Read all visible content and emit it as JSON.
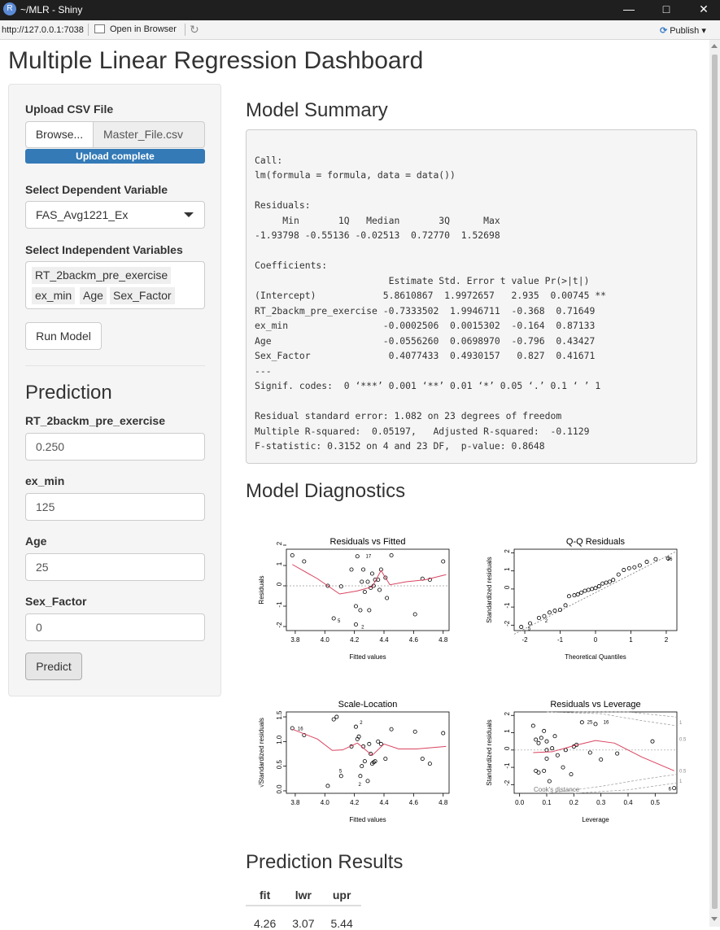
{
  "window": {
    "title": "~/MLR - Shiny",
    "icon_letter": "R"
  },
  "toolbar": {
    "url": "http://127.0.0.1:7038",
    "open_browser": "Open in Browser",
    "publish": "Publish"
  },
  "page": {
    "title": "Multiple Linear Regression Dashboard"
  },
  "sidebar": {
    "upload_label": "Upload CSV File",
    "browse": "Browse...",
    "file_name": "Master_File.csv",
    "upload_status": "Upload complete",
    "dep_label": "Select Dependent Variable",
    "dep_value": "FAS_Avg1221_Ex",
    "indep_label": "Select Independent Variables",
    "indep_values": [
      "RT_2backm_pre_exercise",
      "ex_min",
      "Age",
      "Sex_Factor"
    ],
    "run_button": "Run Model",
    "prediction_heading": "Prediction",
    "inputs": [
      {
        "label": "RT_2backm_pre_exercise",
        "value": "0.250"
      },
      {
        "label": "ex_min",
        "value": "125"
      },
      {
        "label": "Age",
        "value": "25"
      },
      {
        "label": "Sex_Factor",
        "value": "0"
      }
    ],
    "predict_button": "Predict"
  },
  "main": {
    "summary_heading": "Model Summary",
    "summary_text": "\nCall:\nlm(formula = formula, data = data())\n\nResiduals:\n     Min       1Q   Median       3Q      Max \n-1.93798 -0.55136 -0.02513  0.72770  1.52698 \n\nCoefficients:\n                        Estimate Std. Error t value Pr(>|t|)   \n(Intercept)            5.8610867  1.9972657   2.935  0.00745 **\nRT_2backm_pre_exercise -0.7333502  1.9946711  -0.368  0.71649   \nex_min                 -0.0002506  0.0015302  -0.164  0.87133   \nAge                    -0.0556260  0.0698970  -0.796  0.43427   \nSex_Factor              0.4077433  0.4930157   0.827  0.41671   \n---\nSignif. codes:  0 ‘***’ 0.001 ‘**’ 0.01 ‘*’ 0.05 ‘.’ 0.1 ‘ ’ 1\n\nResidual standard error: 1.082 on 23 degrees of freedom\nMultiple R-squared:  0.05197,\tAdjusted R-squared:  -0.1129 \nF-statistic: 0.3152 on 4 and 23 DF,  p-value: 0.8648",
    "diagnostics_heading": "Model Diagnostics",
    "plots": {
      "rvf": {
        "title": "Residuals vs Fitted",
        "xlabel": "Fitted values",
        "ylabel": "Residuals",
        "xticks": [
          "3.8",
          "4.0",
          "4.2",
          "4.4",
          "4.6",
          "4.8"
        ],
        "yticks": [
          "2",
          "1",
          "0",
          "-1",
          "-2"
        ],
        "xlim": [
          3.74,
          4.84
        ],
        "ylim": [
          -2.2,
          1.8
        ],
        "points": [
          [
            3.78,
            1.5
          ],
          [
            3.86,
            1.2
          ],
          [
            4.02,
            0.0
          ],
          [
            4.11,
            -0.03
          ],
          [
            4.06,
            -1.6
          ],
          [
            4.18,
            0.8
          ],
          [
            4.21,
            -1.0
          ],
          [
            4.22,
            1.45
          ],
          [
            4.24,
            -1.2
          ],
          [
            4.25,
            0.2
          ],
          [
            4.26,
            0.8
          ],
          [
            4.27,
            -0.3
          ],
          [
            4.29,
            0.2
          ],
          [
            4.3,
            -1.2
          ],
          [
            4.31,
            -0.1
          ],
          [
            4.32,
            0.6
          ],
          [
            4.33,
            -0.0
          ],
          [
            4.34,
            0.3
          ],
          [
            4.36,
            0.3
          ],
          [
            4.37,
            -0.2
          ],
          [
            4.38,
            0.8
          ],
          [
            4.41,
            0.4
          ],
          [
            4.42,
            -0.6
          ],
          [
            4.45,
            1.5
          ],
          [
            4.61,
            -1.4
          ],
          [
            4.66,
            0.35
          ],
          [
            4.71,
            0.3
          ],
          [
            4.8,
            1.2
          ],
          [
            4.21,
            -1.9
          ]
        ],
        "smooth": [
          [
            3.78,
            1.05
          ],
          [
            3.95,
            0.35
          ],
          [
            4.1,
            -0.4
          ],
          [
            4.22,
            -0.25
          ],
          [
            4.32,
            -0.05
          ],
          [
            4.38,
            0.75
          ],
          [
            4.44,
            0.05
          ],
          [
            4.55,
            0.2
          ],
          [
            4.68,
            0.3
          ],
          [
            4.82,
            0.55
          ]
        ],
        "labels": [
          [
            "17",
            4.26,
            1.5
          ],
          [
            "5",
            4.07,
            -1.68
          ],
          [
            "2",
            4.23,
            -1.98
          ]
        ]
      },
      "qq": {
        "title": "Q-Q Residuals",
        "xlabel": "Theoretical Quantiles",
        "ylabel": "Standardized residuals",
        "xticks": [
          "-2",
          "-1",
          "0",
          "1",
          "2"
        ],
        "yticks": [
          "2",
          "1",
          "0",
          "-1",
          "-2"
        ],
        "xlim": [
          -2.3,
          2.3
        ],
        "ylim": [
          -2.3,
          2.2
        ],
        "points": [
          [
            -2.1,
            -2.1
          ],
          [
            -1.85,
            -1.9
          ],
          [
            -1.6,
            -1.6
          ],
          [
            -1.45,
            -1.5
          ],
          [
            -1.3,
            -1.3
          ],
          [
            -1.15,
            -1.2
          ],
          [
            -1.0,
            -1.15
          ],
          [
            -0.85,
            -0.9
          ],
          [
            -0.75,
            -0.4
          ],
          [
            -0.6,
            -0.35
          ],
          [
            -0.5,
            -0.3
          ],
          [
            -0.4,
            -0.2
          ],
          [
            -0.3,
            -0.1
          ],
          [
            -0.2,
            -0.05
          ],
          [
            -0.1,
            0.0
          ],
          [
            0.0,
            0.05
          ],
          [
            0.1,
            0.15
          ],
          [
            0.2,
            0.3
          ],
          [
            0.3,
            0.35
          ],
          [
            0.4,
            0.4
          ],
          [
            0.5,
            0.5
          ],
          [
            0.65,
            0.8
          ],
          [
            0.8,
            1.05
          ],
          [
            0.95,
            1.15
          ],
          [
            1.1,
            1.2
          ],
          [
            1.25,
            1.3
          ],
          [
            1.45,
            1.5
          ],
          [
            1.7,
            1.65
          ],
          [
            2.05,
            1.7
          ]
        ],
        "line": [
          [
            -2.3,
            -2.5
          ],
          [
            2.3,
            2.1
          ]
        ],
        "labels": [
          [
            "16",
            1.95,
            1.7
          ],
          [
            "5",
            -1.98,
            -2.15
          ],
          [
            "2",
            -1.5,
            -1.72
          ]
        ]
      },
      "sl": {
        "title": "Scale-Location",
        "xlabel": "Fitted values",
        "ylabel": "√Standardized residuals",
        "xticks": [
          "3.8",
          "4.0",
          "4.2",
          "4.4",
          "4.6",
          "4.8"
        ],
        "yticks": [
          "1.5",
          "1.0",
          "0.5",
          "0.0"
        ],
        "xlim": [
          3.74,
          4.84
        ],
        "ylim": [
          -0.05,
          1.6
        ],
        "points": [
          [
            3.78,
            1.27
          ],
          [
            3.86,
            1.13
          ],
          [
            4.02,
            0.1
          ],
          [
            4.06,
            1.45
          ],
          [
            4.11,
            0.3
          ],
          [
            4.18,
            0.9
          ],
          [
            4.21,
            1.3
          ],
          [
            4.22,
            1.05
          ],
          [
            4.23,
            1.1
          ],
          [
            4.25,
            0.5
          ],
          [
            4.26,
            0.9
          ],
          [
            4.27,
            0.6
          ],
          [
            4.29,
            0.2
          ],
          [
            4.3,
            0.95
          ],
          [
            4.31,
            0.75
          ],
          [
            4.32,
            0.55
          ],
          [
            4.33,
            0.58
          ],
          [
            4.34,
            0.6
          ],
          [
            4.36,
            1.0
          ],
          [
            4.38,
            0.95
          ],
          [
            4.41,
            0.65
          ],
          [
            4.45,
            1.25
          ],
          [
            4.61,
            1.2
          ],
          [
            4.66,
            0.65
          ],
          [
            4.71,
            0.55
          ],
          [
            4.8,
            1.17
          ],
          [
            4.24,
            0.3
          ],
          [
            4.08,
            1.5
          ]
        ],
        "smooth": [
          [
            3.78,
            1.25
          ],
          [
            3.95,
            1.05
          ],
          [
            4.05,
            0.82
          ],
          [
            4.12,
            0.83
          ],
          [
            4.22,
            0.97
          ],
          [
            4.32,
            0.72
          ],
          [
            4.4,
            0.95
          ],
          [
            4.5,
            0.85
          ],
          [
            4.62,
            0.85
          ],
          [
            4.82,
            0.9
          ]
        ],
        "labels": [
          [
            "16",
            3.8,
            1.28
          ],
          [
            "5",
            4.08,
            0.42
          ],
          [
            "2",
            4.22,
            1.4
          ],
          [
            "2",
            4.21,
            0.15
          ]
        ]
      },
      "rvl": {
        "title": "Residuals vs Leverage",
        "xlabel": "Leverage",
        "ylabel": "Standardized residuals",
        "xticks": [
          "0.0",
          "0.1",
          "0.2",
          "0.3",
          "0.4",
          "0.5"
        ],
        "yticks": [
          "2",
          "1",
          "0",
          "-1",
          "-2"
        ],
        "xlim": [
          -0.02,
          0.58
        ],
        "ylim": [
          -2.5,
          2.2
        ],
        "points": [
          [
            0.05,
            1.4
          ],
          [
            0.06,
            -1.2
          ],
          [
            0.07,
            0.4
          ],
          [
            0.07,
            -1.3
          ],
          [
            0.08,
            0.7
          ],
          [
            0.09,
            1.1
          ],
          [
            0.09,
            -1.2
          ],
          [
            0.1,
            0.5
          ],
          [
            0.1,
            0.0
          ],
          [
            0.1,
            -0.5
          ],
          [
            0.11,
            -1.8
          ],
          [
            0.12,
            0.1
          ],
          [
            0.13,
            0.8
          ],
          [
            0.14,
            -0.3
          ],
          [
            0.16,
            -1.0
          ],
          [
            0.17,
            0.0
          ],
          [
            0.19,
            -1.4
          ],
          [
            0.2,
            0.2
          ],
          [
            0.21,
            0.3
          ],
          [
            0.26,
            -0.15
          ],
          [
            0.3,
            -0.55
          ],
          [
            0.36,
            -0.2
          ],
          [
            0.49,
            0.5
          ],
          [
            0.57,
            -2.2
          ],
          [
            0.23,
            1.6
          ],
          [
            0.28,
            1.5
          ],
          [
            0.06,
            0.6
          ]
        ],
        "smooth": [
          [
            0.05,
            -0.15
          ],
          [
            0.12,
            -0.1
          ],
          [
            0.2,
            0.25
          ],
          [
            0.28,
            0.55
          ],
          [
            0.35,
            0.4
          ],
          [
            0.45,
            -0.4
          ],
          [
            0.57,
            -1.2
          ]
        ],
        "cooks_top": [
          [
            0.1,
            3.0
          ],
          [
            0.3,
            2.1
          ],
          [
            0.45,
            1.7
          ],
          [
            0.58,
            1.4
          ]
        ],
        "cooks_top2": [
          [
            0.2,
            3.0
          ],
          [
            0.4,
            2.3
          ],
          [
            0.58,
            1.9
          ]
        ],
        "cooks_bot": [
          [
            0.2,
            -3.0
          ],
          [
            0.4,
            -2.3
          ],
          [
            0.58,
            -1.9
          ]
        ],
        "cooks_bot2": [
          [
            0.1,
            -3.0
          ],
          [
            0.3,
            -2.1
          ],
          [
            0.45,
            -1.7
          ],
          [
            0.58,
            -1.4
          ]
        ],
        "side_labels": [
          "1",
          "0.5",
          "0.5",
          "1"
        ],
        "cooks_label": "Cook's distance",
        "labels": [
          [
            "25",
            0.24,
            1.65
          ],
          [
            "16",
            0.3,
            1.65
          ],
          [
            "6",
            0.54,
            -2.2
          ]
        ]
      }
    },
    "prediction_results_heading": "Prediction Results",
    "results_table": {
      "headers": [
        "fit",
        "lwr",
        "upr"
      ],
      "row": [
        "4.26",
        "3.07",
        "5.44"
      ]
    }
  },
  "colors": {
    "primary": "#337ab7",
    "smooth_line": "#d9435f",
    "titlebar": "#1f1f1f"
  }
}
